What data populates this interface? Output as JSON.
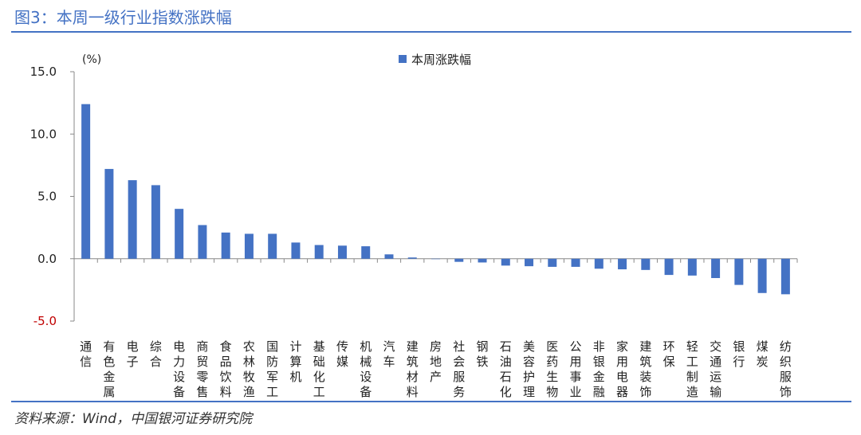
{
  "figure": {
    "title": "图3：本周一级行业指数涨跌幅",
    "source": "资料来源：Wind，中国银河证券研究院"
  },
  "colors": {
    "bar": "#4472C4",
    "accent": "#4472C4",
    "negative_tick": "#C00000"
  },
  "chart_data": {
    "type": "bar",
    "unit_label": "(%)",
    "ylim": [
      -5,
      15
    ],
    "yticks": [
      15,
      10,
      5,
      0,
      -5
    ],
    "ytick_labels": [
      "15.0",
      "10.0",
      "5.0",
      "0.0",
      "-5.0"
    ],
    "grid": false,
    "legend_position": "top-center",
    "categories": [
      "通信",
      "有色金属",
      "电子",
      "综合",
      "电力设备",
      "商贸零售",
      "食品饮料",
      "农林牧渔",
      "国防军工",
      "计算机",
      "基础化工",
      "传媒",
      "机械设备",
      "汽车",
      "建筑材料",
      "房地产",
      "社会服务",
      "钢铁",
      "石油石化",
      "美容护理",
      "医药生物",
      "公用事业",
      "非银金融",
      "家用电器",
      "建筑装饰",
      "环保",
      "轻工制造",
      "交通运输",
      "银行",
      "煤炭",
      "纺织服饰"
    ],
    "series": [
      {
        "name": "本周涨跌幅",
        "values": [
          12.4,
          7.2,
          6.3,
          5.9,
          4.0,
          2.7,
          2.1,
          2.0,
          2.0,
          1.3,
          1.1,
          1.05,
          1.0,
          0.35,
          0.1,
          0.0,
          -0.25,
          -0.3,
          -0.55,
          -0.6,
          -0.65,
          -0.65,
          -0.8,
          -0.85,
          -0.9,
          -1.3,
          -1.35,
          -1.55,
          -2.1,
          -2.75,
          -2.85
        ]
      }
    ]
  }
}
